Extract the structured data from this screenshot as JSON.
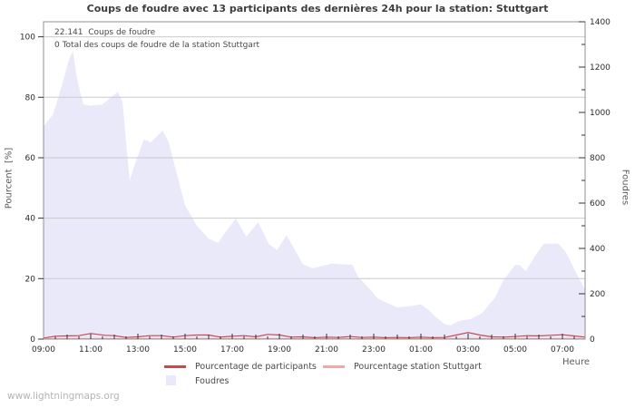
{
  "title": "Coups de foudre avec 13 participants des dernières 24h pour la station: Stuttgart",
  "annotations": {
    "line1": "22.141  Coups de foudre",
    "line2": "0 Total des coups de foudre de la station Stuttgart"
  },
  "axes": {
    "left_label": "Pourcent  [%]",
    "right_label": "Foudres",
    "x_label": "Heure"
  },
  "legend": {
    "participants": "Pourcentage de participants",
    "station": "Pourcentage station Stuttgart",
    "foudres": "Foudres"
  },
  "watermark": "www.lightningmaps.org",
  "colors": {
    "participants_line": "#c8494f",
    "station_line": "#f2a8a8",
    "foudres_area": "#e9e9fa",
    "grid": "#c9c9cf",
    "frame": "#909090",
    "tick_text": "#2b2b2b"
  },
  "chart_data": {
    "type": "area",
    "title": "Coups de foudre avec 13 participants des dernières 24h pour la station: Stuttgart",
    "x_axis": {
      "label": "Heure",
      "start": "09:00",
      "hours_span": 22.96,
      "tick_hour_offsets": [
        0,
        2,
        4,
        6,
        8,
        10,
        12,
        14,
        16,
        18,
        20,
        22
      ],
      "tick_labels": [
        "09:00",
        "11:00",
        "13:00",
        "15:00",
        "17:00",
        "19:00",
        "21:00",
        "23:00",
        "01:00",
        "03:00",
        "05:00",
        "07:00"
      ]
    },
    "y_left": {
      "label": "Pourcent  [%]",
      "min": 0,
      "max": 100,
      "ticks": [
        0,
        20,
        40,
        60,
        80,
        100
      ],
      "grid_at": [
        20,
        40,
        60,
        80,
        100
      ]
    },
    "y_right": {
      "label": "Foudres",
      "min": 0,
      "max": 1400,
      "major_step": 200,
      "minor_step": 100,
      "tick_labels": [
        0,
        200,
        400,
        600,
        800,
        1000,
        1200,
        1400
      ]
    },
    "series": [
      {
        "name": "Foudres",
        "type": "area",
        "axis": "right",
        "points": [
          [
            0,
            940
          ],
          [
            0.4,
            990
          ],
          [
            0.75,
            1110
          ],
          [
            1.1,
            1240
          ],
          [
            1.25,
            1270
          ],
          [
            1.4,
            1160
          ],
          [
            1.55,
            1090
          ],
          [
            1.7,
            1035
          ],
          [
            2,
            1030
          ],
          [
            2.5,
            1035
          ],
          [
            2.9,
            1070
          ],
          [
            3.15,
            1090
          ],
          [
            3.35,
            1045
          ],
          [
            3.5,
            870
          ],
          [
            3.65,
            700
          ],
          [
            3.9,
            780
          ],
          [
            4.25,
            880
          ],
          [
            4.4,
            875
          ],
          [
            4.55,
            868
          ],
          [
            5.05,
            920
          ],
          [
            5.3,
            870
          ],
          [
            5.55,
            770
          ],
          [
            6,
            590
          ],
          [
            6.5,
            500
          ],
          [
            7,
            443
          ],
          [
            7.4,
            425
          ],
          [
            7.7,
            470
          ],
          [
            8.15,
            532
          ],
          [
            8.6,
            452
          ],
          [
            9.1,
            516
          ],
          [
            9.55,
            420
          ],
          [
            9.9,
            392
          ],
          [
            10.3,
            458
          ],
          [
            10.65,
            395
          ],
          [
            11,
            330
          ],
          [
            11.4,
            312
          ],
          [
            12.2,
            333
          ],
          [
            12.7,
            330
          ],
          [
            13.1,
            328
          ],
          [
            13.35,
            272
          ],
          [
            13.85,
            220
          ],
          [
            14.15,
            180
          ],
          [
            14.6,
            158
          ],
          [
            15,
            140
          ],
          [
            15.6,
            146
          ],
          [
            16,
            154
          ],
          [
            16.3,
            130
          ],
          [
            16.6,
            100
          ],
          [
            17,
            67
          ],
          [
            17.25,
            60
          ],
          [
            17.6,
            80
          ],
          [
            18.1,
            88
          ],
          [
            18.6,
            115
          ],
          [
            19.15,
            185
          ],
          [
            19.5,
            260
          ],
          [
            20,
            328
          ],
          [
            20.2,
            325
          ],
          [
            20.45,
            300
          ],
          [
            20.8,
            360
          ],
          [
            21.2,
            420
          ],
          [
            21.8,
            422
          ],
          [
            22.1,
            390
          ],
          [
            22.3,
            352
          ],
          [
            22.7,
            268
          ],
          [
            22.96,
            218
          ]
        ]
      },
      {
        "name": "Pourcentage de participants",
        "type": "line",
        "axis": "left",
        "points": [
          [
            0,
            0.2
          ],
          [
            0.5,
            0.8
          ],
          [
            1,
            0.9
          ],
          [
            1.5,
            1.0
          ],
          [
            2,
            1.7
          ],
          [
            2.3,
            1.4
          ],
          [
            2.6,
            1.1
          ],
          [
            3,
            1.0
          ],
          [
            3.5,
            0.4
          ],
          [
            4,
            0.6
          ],
          [
            4.5,
            1.0
          ],
          [
            5,
            1.0
          ],
          [
            5.5,
            0.5
          ],
          [
            6,
            1.0
          ],
          [
            6.5,
            1.2
          ],
          [
            7,
            1.2
          ],
          [
            7.5,
            0.5
          ],
          [
            8,
            0.8
          ],
          [
            8.5,
            1.0
          ],
          [
            9,
            0.6
          ],
          [
            9.5,
            1.4
          ],
          [
            10,
            1.2
          ],
          [
            10.5,
            0.5
          ],
          [
            11,
            0.6
          ],
          [
            11.5,
            0.3
          ],
          [
            12,
            0.5
          ],
          [
            12.5,
            0.4
          ],
          [
            13,
            0.7
          ],
          [
            13.5,
            0.4
          ],
          [
            14,
            0.5
          ],
          [
            14.5,
            0.3
          ],
          [
            15,
            0.4
          ],
          [
            15.5,
            0.3
          ],
          [
            16,
            0.5
          ],
          [
            16.5,
            0.3
          ],
          [
            17,
            0.4
          ],
          [
            17.5,
            1.2
          ],
          [
            18,
            2.0
          ],
          [
            18.5,
            1.2
          ],
          [
            19,
            0.6
          ],
          [
            19.5,
            0.5
          ],
          [
            20,
            0.7
          ],
          [
            20.5,
            1.0
          ],
          [
            21,
            0.9
          ],
          [
            21.5,
            1.1
          ],
          [
            22,
            1.3
          ],
          [
            22.5,
            0.9
          ],
          [
            22.96,
            0.5
          ]
        ]
      },
      {
        "name": "Pourcentage station Stuttgart",
        "type": "line",
        "axis": "left",
        "points": [
          [
            0,
            0
          ],
          [
            22.96,
            0
          ]
        ]
      }
    ],
    "annotations": [
      "22.141  Coups de foudre",
      "0 Total des coups de foudre de la station Stuttgart"
    ],
    "legend_position": "bottom",
    "grid": "horizontal-only"
  }
}
